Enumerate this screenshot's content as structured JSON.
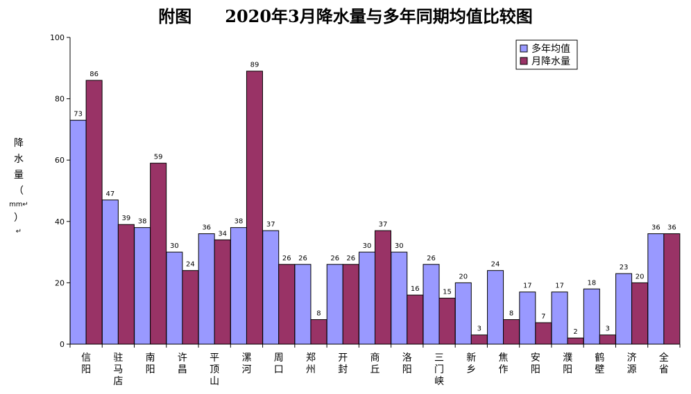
{
  "chart_data": {
    "type": "bar",
    "title": "附图　　2020年3月降水量与多年同期均值比较图",
    "ylabel_chars": [
      "降",
      "水",
      "量",
      "（",
      "mm↵",
      "）",
      "↵"
    ],
    "ylim": [
      0,
      100
    ],
    "yticks": [
      0,
      20,
      40,
      60,
      80,
      100
    ],
    "grid": false,
    "legend_position": "top-right",
    "categories": [
      [
        "信",
        "阳"
      ],
      [
        "驻",
        "马",
        "店"
      ],
      [
        "南",
        "阳"
      ],
      [
        "许",
        "昌"
      ],
      [
        "平",
        "顶",
        "山"
      ],
      [
        "漯",
        "河"
      ],
      [
        "周",
        "口"
      ],
      [
        "郑",
        "州"
      ],
      [
        "开",
        "封"
      ],
      [
        "商",
        "丘"
      ],
      [
        "洛",
        "阳"
      ],
      [
        "三",
        "门",
        "峡"
      ],
      [
        "新",
        "乡"
      ],
      [
        "焦",
        "作"
      ],
      [
        "安",
        "阳"
      ],
      [
        "濮",
        "阳"
      ],
      [
        "鹤",
        "壁"
      ],
      [
        "济",
        "源"
      ],
      [
        "全",
        "省"
      ]
    ],
    "series": [
      {
        "name": "多年均值",
        "color": "#9999ff",
        "values": [
          73,
          47,
          38,
          30,
          36,
          38,
          37,
          26,
          26,
          30,
          30,
          26,
          20,
          24,
          17,
          17,
          18,
          23,
          36
        ]
      },
      {
        "name": "月降水量",
        "color": "#993366",
        "values": [
          86,
          39,
          59,
          24,
          34,
          89,
          26,
          8,
          26,
          37,
          16,
          15,
          3,
          8,
          7,
          2,
          3,
          20,
          36
        ]
      }
    ]
  }
}
